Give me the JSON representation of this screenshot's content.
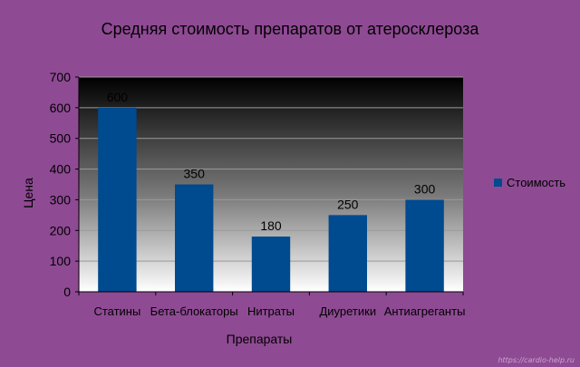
{
  "chart_data": {
    "type": "bar",
    "title": "Средняя стоимость препаратов от атеросклероза",
    "xlabel": "Препараты",
    "ylabel": "Цена",
    "categories": [
      "Статины",
      "Бета-блокаторы",
      "Нитраты",
      "Диуретики",
      "Антиагреганты"
    ],
    "series": [
      {
        "name": "Стоимость",
        "values": [
          600,
          350,
          180,
          250,
          300
        ],
        "color": "#004a8f"
      }
    ],
    "ylim": [
      0,
      700
    ],
    "yticks": [
      0,
      100,
      200,
      300,
      400,
      500,
      600,
      700
    ],
    "data_labels": [
      "600",
      "350",
      "180",
      "250",
      "300"
    ],
    "grid": true,
    "legend": "right"
  },
  "watermark": "https://cardio-help.ru"
}
